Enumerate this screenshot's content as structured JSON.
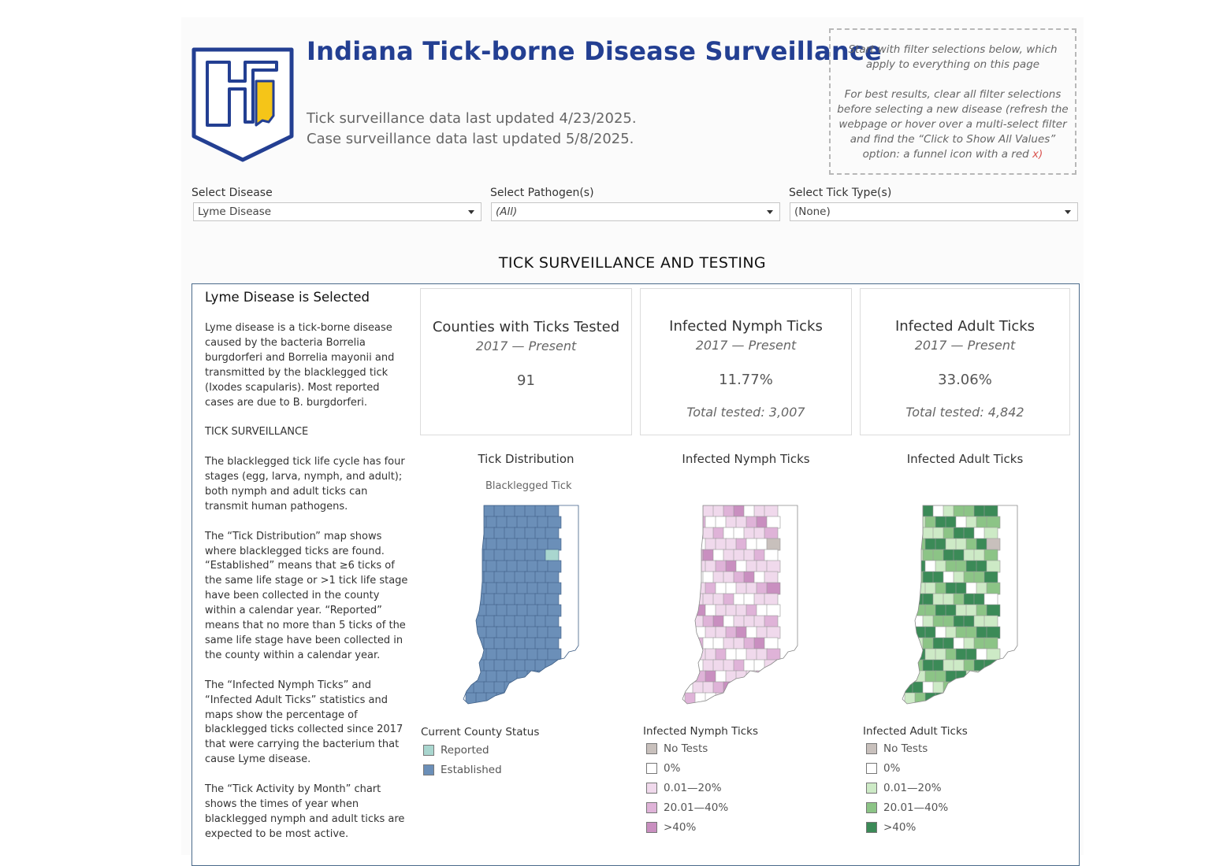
{
  "header": {
    "title": "Indiana Tick-borne Disease Surveillance",
    "updated_tick": "Tick surveillance data last updated 4/23/2025.",
    "updated_case": "Case surveillance data last updated 5/8/2025."
  },
  "note": {
    "line1": "Start with filter selections below, which apply to everything on this page",
    "line2_prefix": "For best results, clear all filter selections before selecting a new disease (refresh the webpage or hover over a multi-select filter and find the “Click to Show All Values” option: a funnel icon with a red",
    "line2_x": "x)"
  },
  "filters": [
    {
      "label": "Select Disease",
      "value": "Lyme Disease"
    },
    {
      "label": "Select Pathogen(s)",
      "value": "(All)"
    },
    {
      "label": "Select Tick Type(s)",
      "value": "(None)"
    }
  ],
  "section_title": "TICK SURVEILLANCE AND TESTING",
  "description": {
    "title": "Lyme Disease is Selected",
    "paragraphs": [
      "Lyme disease is a tick-borne disease caused by the bacteria Borrelia burgdorferi and Borrelia mayonii and transmitted by the blacklegged tick (Ixodes scapularis). Most reported cases are due to B. burgdorferi.",
      "TICK SURVEILLANCE",
      "The blacklegged tick life cycle has four stages (egg, larva, nymph, and adult); both nymph and adult ticks can transmit human pathogens.",
      "The “Tick Distribution” map shows where blacklegged ticks are found. “Established” means that ≥6 ticks of the same life stage or >1 tick life stage have been collected in the county within a calendar year. “Reported” means that no more than 5 ticks of the same life stage have been collected in the county within a calendar year.",
      "The “Infected Nymph Ticks” and “Infected Adult Ticks” statistics and maps show the percentage of blacklegged ticks collected since 2017 that were carrying the bacterium that cause Lyme disease.",
      "The “Tick Activity by Month” chart shows the times of year when blacklegged nymph and adult ticks are expected to be most active."
    ]
  },
  "cards": [
    {
      "title": "Counties with Ticks Tested",
      "subtitle": "2017 — Present",
      "value": "91",
      "total": ""
    },
    {
      "title": "Infected Nymph Ticks",
      "subtitle": "2017 — Present",
      "value": "11.77%",
      "total": "Total tested: 3,007"
    },
    {
      "title": "Infected Adult Ticks",
      "subtitle": "2017 — Present",
      "value": "33.06%",
      "total": "Total tested: 4,842"
    }
  ],
  "maps": [
    {
      "title": "Tick Distribution",
      "subtitle": "Blacklegged Tick"
    },
    {
      "title": "Infected Nymph Ticks",
      "subtitle": ""
    },
    {
      "title": "Infected Adult Ticks",
      "subtitle": ""
    }
  ],
  "legends": {
    "distribution": {
      "title": "Current County Status",
      "items": [
        {
          "label": "Reported",
          "color": "#a9d6cf"
        },
        {
          "label": "Established",
          "color": "#6b8fb8"
        }
      ]
    },
    "nymph": {
      "title": "Infected Nymph Ticks",
      "items": [
        {
          "label": "No Tests",
          "color": "#c8c0bc"
        },
        {
          "label": "0%",
          "color": "#ffffff"
        },
        {
          "label": "0.01—20%",
          "color": "#f0d9ec"
        },
        {
          "label": "20.01—40%",
          "color": "#dfb3d8"
        },
        {
          "label": ">40%",
          "color": "#c98fc0"
        }
      ]
    },
    "adult": {
      "title": "Infected Adult Ticks",
      "items": [
        {
          "label": "No Tests",
          "color": "#c8c0bc"
        },
        {
          "label": "0%",
          "color": "#ffffff"
        },
        {
          "label": "0.01—20%",
          "color": "#cdeac6"
        },
        {
          "label": "20.01—40%",
          "color": "#8cc486"
        },
        {
          "label": ">40%",
          "color": "#3b8a57"
        }
      ]
    }
  },
  "colors": {
    "title": "#233f92",
    "logo_blue": "#233f92",
    "logo_yellow": "#f5c518"
  }
}
